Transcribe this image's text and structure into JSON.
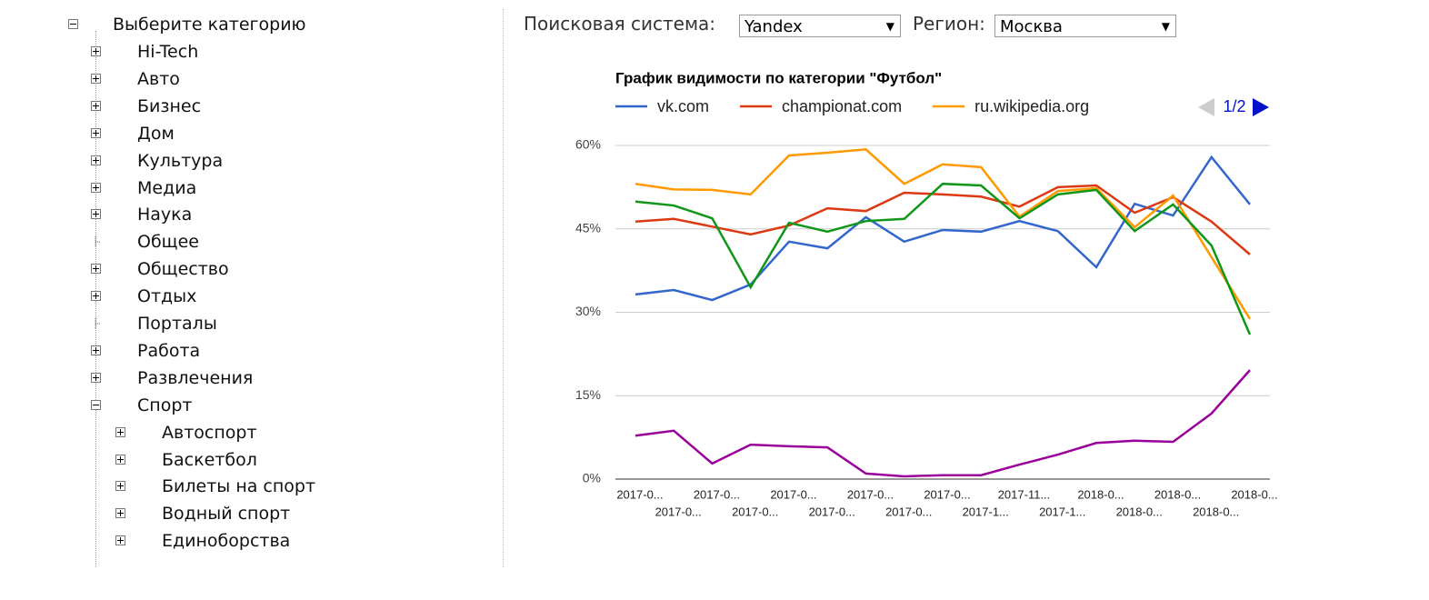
{
  "search_engine_label": "Поисковая система:",
  "search_engine": "Yandex",
  "region_label": "Регион:",
  "region": "Москва",
  "tree": {
    "root": "Выберите категорию",
    "root_state": "expanded",
    "nodes": [
      {
        "label": "Hi-Tech",
        "level": 1,
        "state": "collapsed"
      },
      {
        "label": "Авто",
        "level": 1,
        "state": "collapsed"
      },
      {
        "label": "Бизнес",
        "level": 1,
        "state": "collapsed"
      },
      {
        "label": "Дом",
        "level": 1,
        "state": "collapsed"
      },
      {
        "label": "Культура",
        "level": 1,
        "state": "collapsed"
      },
      {
        "label": "Медиа",
        "level": 1,
        "state": "collapsed"
      },
      {
        "label": "Наука",
        "level": 1,
        "state": "collapsed"
      },
      {
        "label": "Общее",
        "level": 1,
        "state": "leaf"
      },
      {
        "label": "Общество",
        "level": 1,
        "state": "collapsed"
      },
      {
        "label": "Отдых",
        "level": 1,
        "state": "collapsed"
      },
      {
        "label": "Порталы",
        "level": 1,
        "state": "leaf"
      },
      {
        "label": "Работа",
        "level": 1,
        "state": "collapsed"
      },
      {
        "label": "Развлечения",
        "level": 1,
        "state": "collapsed"
      },
      {
        "label": "Спорт",
        "level": 1,
        "state": "expanded"
      },
      {
        "label": "Автоспорт",
        "level": 2,
        "state": "collapsed"
      },
      {
        "label": "Баскетбол",
        "level": 2,
        "state": "collapsed"
      },
      {
        "label": "Билеты на спорт",
        "level": 2,
        "state": "collapsed"
      },
      {
        "label": "Водный спорт",
        "level": 2,
        "state": "collapsed"
      },
      {
        "label": "Единоборства",
        "level": 2,
        "state": "collapsed"
      }
    ]
  },
  "chart_data": {
    "type": "line",
    "title": "График видимости по категории \"Футбол\"",
    "categories": [
      "2017-0...",
      "2017-0...",
      "2017-0...",
      "2017-0...",
      "2017-0...",
      "2017-0...",
      "2017-0...",
      "2017-0...",
      "2017-0...",
      "2017-1...",
      "2017-11...",
      "2017-1...",
      "2018-0...",
      "2018-0...",
      "2018-0...",
      "2018-0...",
      "2018-0..."
    ],
    "series": [
      {
        "name": "vk.com",
        "color": "#3366cc",
        "values": [
          33.2,
          34.0,
          32.2,
          35.0,
          42.7,
          41.5,
          47.1,
          42.7,
          44.8,
          44.5,
          46.4,
          44.6,
          38.1,
          49.5,
          47.4,
          57.9,
          49.4
        ]
      },
      {
        "name": "championat.com",
        "color": "#dc3912",
        "values": [
          46.3,
          46.8,
          45.4,
          44.0,
          45.6,
          48.7,
          48.2,
          51.5,
          51.2,
          50.8,
          49.0,
          52.5,
          52.8,
          47.9,
          50.7,
          46.3,
          40.4
        ]
      },
      {
        "name": "ru.wikipedia.org",
        "color": "#ff9900",
        "values": [
          53.1,
          52.1,
          52.0,
          51.2,
          58.2,
          58.7,
          59.3,
          53.1,
          56.6,
          56.1,
          47.2,
          51.8,
          52.3,
          45.3,
          51.0,
          39.9,
          28.8
        ]
      },
      {
        "color": "#109618",
        "values": [
          49.9,
          49.2,
          46.9,
          34.5,
          46.1,
          44.5,
          46.4,
          46.8,
          53.1,
          52.8,
          46.9,
          51.2,
          52.0,
          44.6,
          49.4,
          42.0,
          26.0
        ]
      },
      {
        "color": "#990099",
        "values": [
          7.8,
          8.7,
          2.8,
          6.2,
          5.9,
          5.7,
          1.0,
          0.5,
          0.7,
          0.7,
          2.6,
          4.4,
          6.5,
          6.9,
          6.7,
          11.8,
          19.6
        ]
      }
    ],
    "ylim": [
      0,
      60
    ],
    "yticks": [
      {
        "value": 0,
        "label": "0%"
      },
      {
        "value": 15,
        "label": "15%"
      },
      {
        "value": 30,
        "label": "30%"
      },
      {
        "value": 45,
        "label": "45%"
      },
      {
        "value": 60,
        "label": "60%"
      }
    ],
    "grid": true,
    "legend": "top",
    "legend_page": "1/2"
  }
}
